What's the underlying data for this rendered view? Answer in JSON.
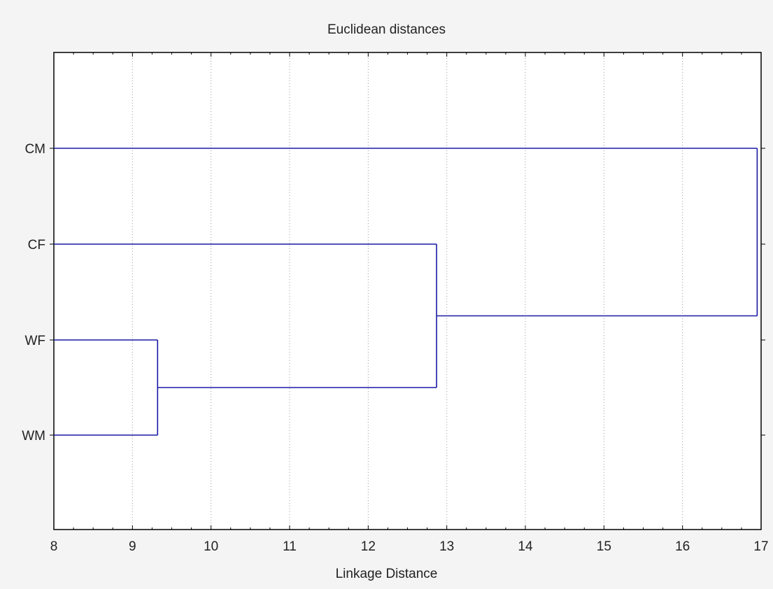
{
  "chart_data": {
    "type": "dendrogram",
    "title": "Euclidean distances",
    "xlabel": "Linkage Distance",
    "ylabel": "",
    "xlim": [
      8,
      17
    ],
    "xticks": [
      "8",
      "9",
      "10",
      "11",
      "12",
      "13",
      "14",
      "15",
      "16",
      "17"
    ],
    "grid": "vertical-dotted",
    "leaves": [
      "CM",
      "CF",
      "WF",
      "WM"
    ],
    "merges": [
      {
        "members": [
          "WF",
          "WM"
        ],
        "distance": 9.32
      },
      {
        "members": [
          "CF",
          "WF+WM"
        ],
        "distance": 12.87
      },
      {
        "members": [
          "CM",
          "CF+WF+WM"
        ],
        "distance": 16.95
      }
    ],
    "line_color": "#1a1aa6"
  }
}
